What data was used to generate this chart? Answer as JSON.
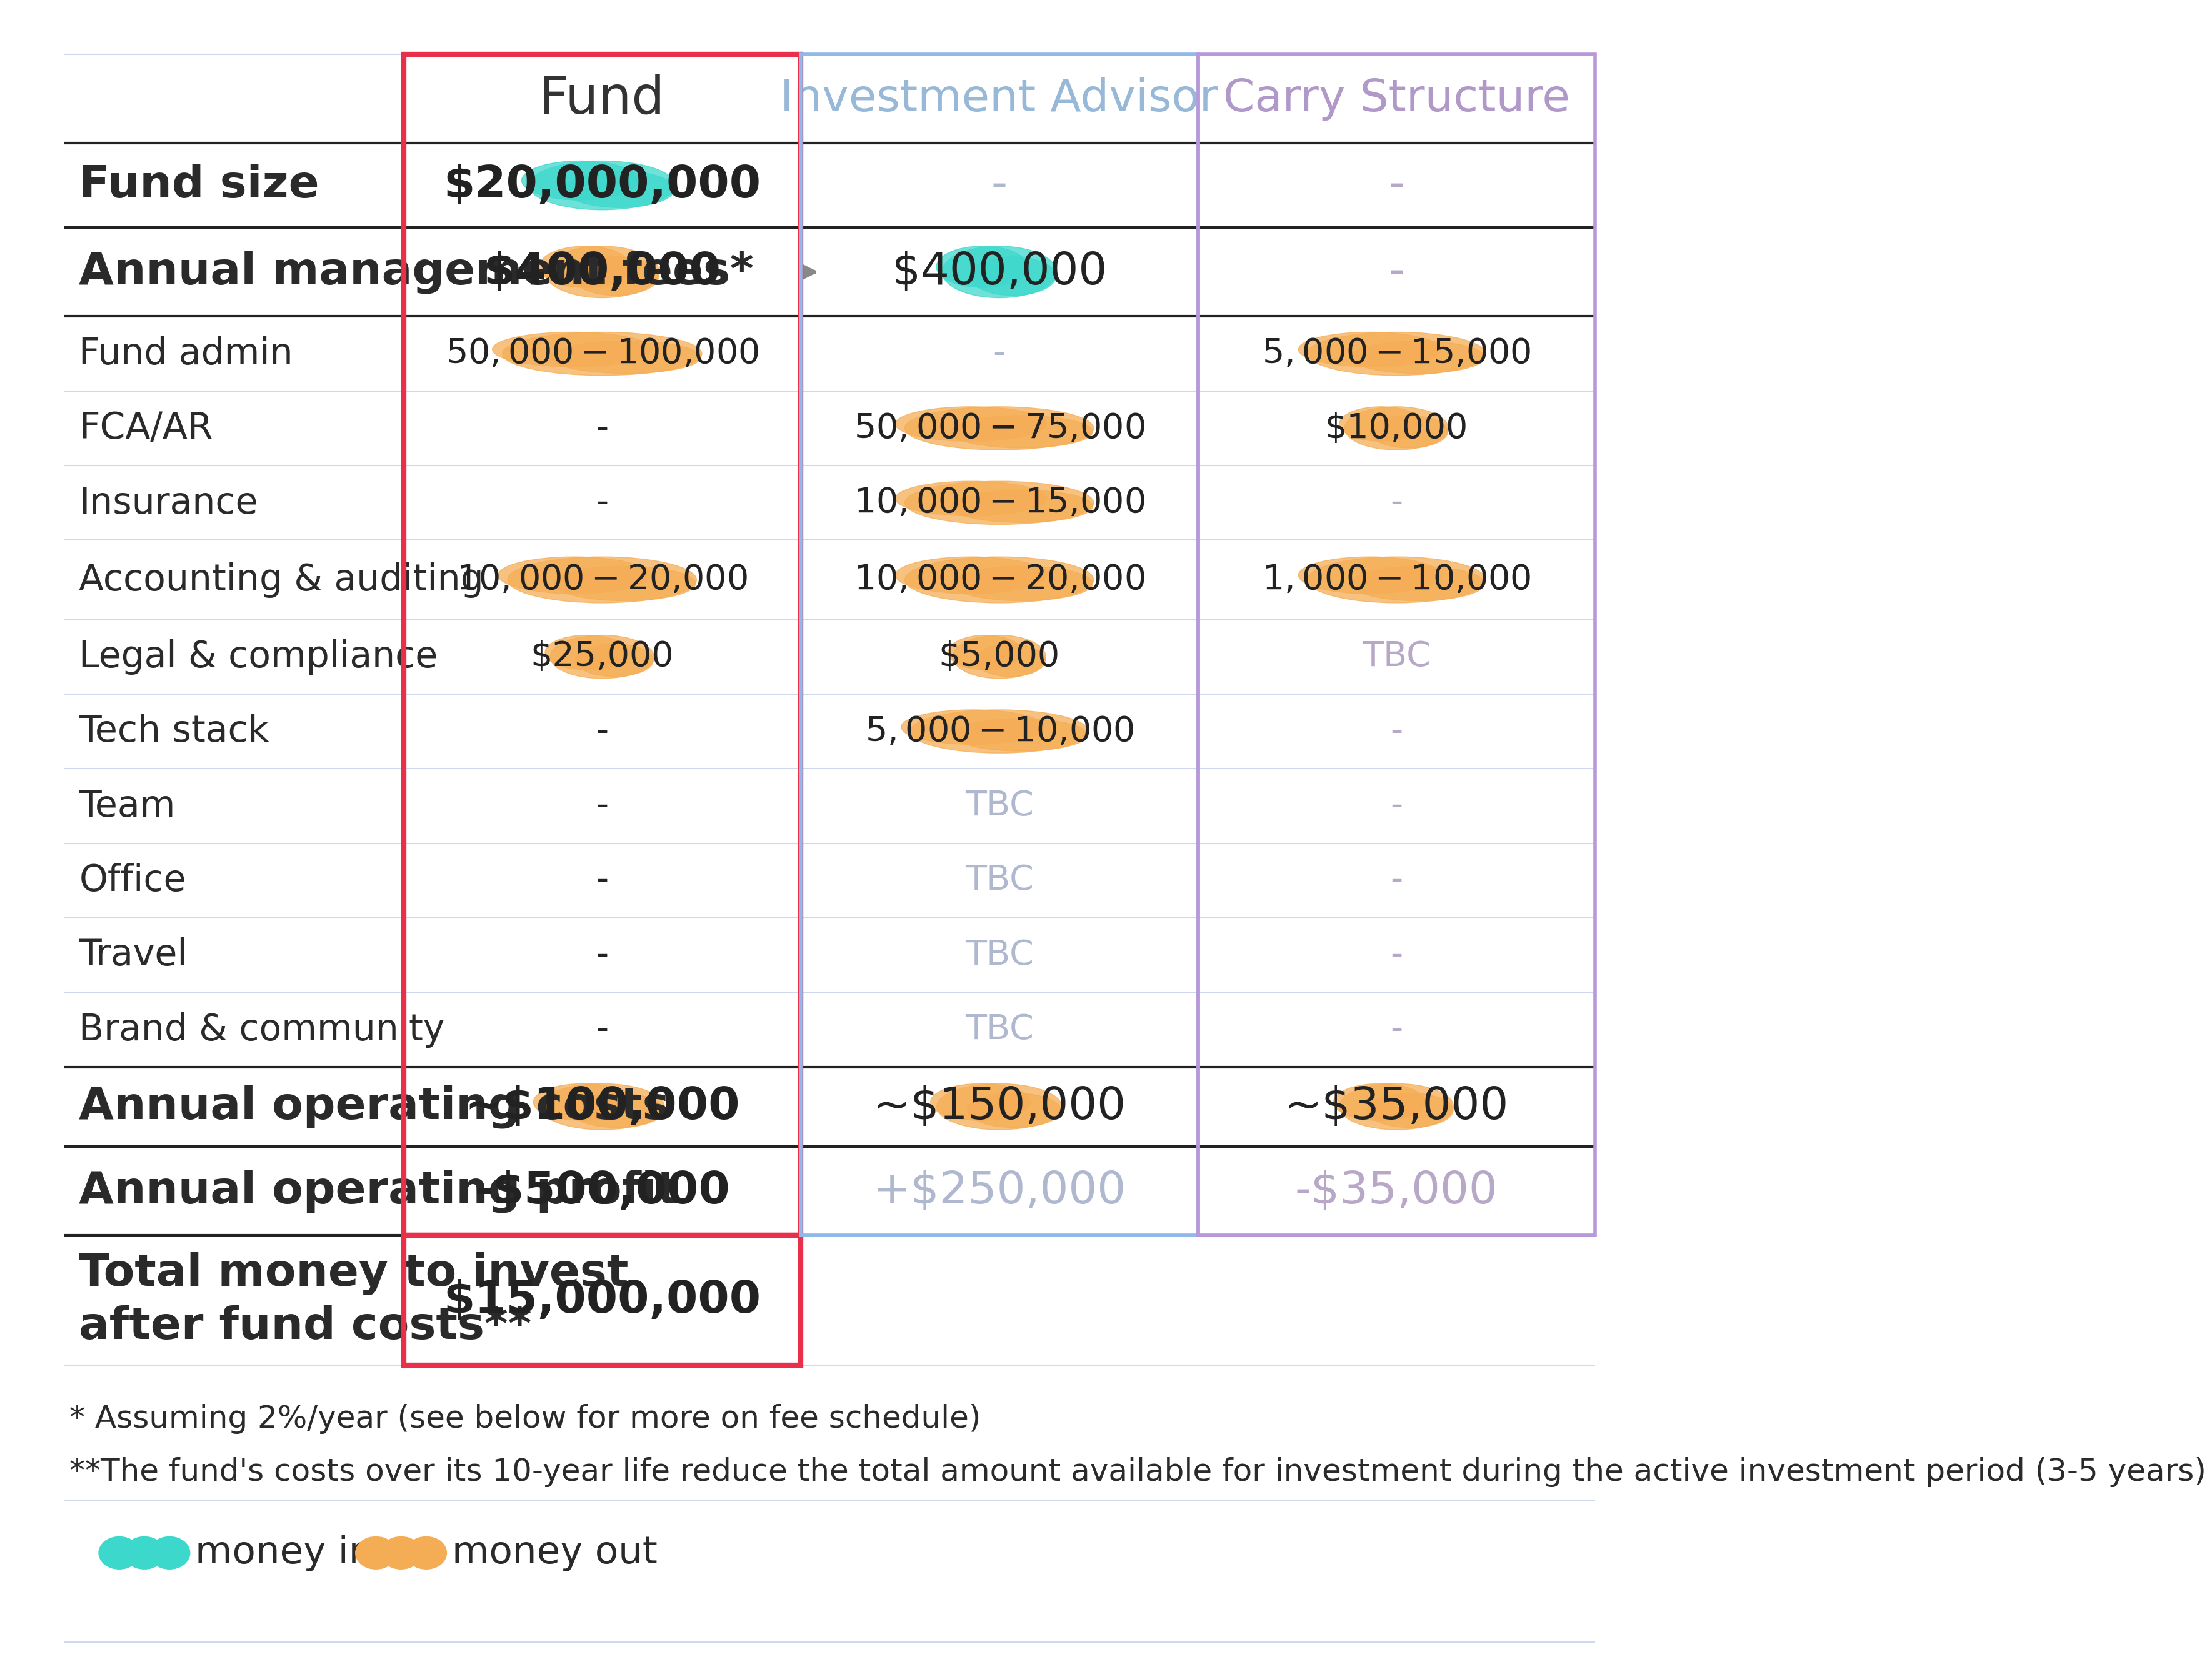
{
  "background_color": "#ffffff",
  "row_line_color_light": "#d0d8f0",
  "row_line_color_bold": "#222222",
  "red_border_color": "#e8304a",
  "blue_border_color": "#90b8e8",
  "purple_border_color": "#b898d8",
  "highlight_cyan": "#3dd8cc",
  "highlight_orange": "#f5ad55",
  "header_text_dark": "#333333",
  "header_text_blue": "#98b8d8",
  "header_text_purple": "#b098c8",
  "row_label_color": "#2a2a2a",
  "value_text_dark": "#222222",
  "value_text_faded_blue": "#b0b8d0",
  "value_text_faded_purple": "#b8a8c8",
  "arrow_color": "#888888",
  "footnote_color": "#2a2a2a",
  "legend_text_color": "#2a2a2a",
  "rows": [
    "Fund size",
    "Annual management fees*",
    "Fund admin",
    "FCA/AR",
    "Insurance",
    "Accounting & auditing",
    "Legal & compliance",
    "Tech stack",
    "Team",
    "Office",
    "Travel",
    "Brand & community",
    "Annual operating costs",
    "Annual operating profit",
    "Total money to invest\nafter fund costs**"
  ],
  "fund_col": [
    "$20,000,000",
    "$400,000",
    "$50,000-$100,000",
    "-",
    "-",
    "$10,000-$20,000",
    "$25,000",
    "-",
    "-",
    "-",
    "-",
    "-",
    "~$100,000",
    "-$500,000",
    "$15,000,000"
  ],
  "invest_col": [
    "-",
    "$400,000",
    "-",
    "$50,000-$75,000",
    "$10,000-$15,000",
    "$10,000-$20,000",
    "$5,000",
    "$5,000-$10,000",
    "TBC",
    "TBC",
    "TBC",
    "TBC",
    "~$150,000",
    "+$250,000",
    ""
  ],
  "carry_col": [
    "-",
    "-",
    "$5,000-$15,000",
    "$10,000",
    "-",
    "$1,000-$10,000",
    "TBC",
    "-",
    "-",
    "-",
    "-",
    "-",
    "~$35,000",
    "-$35,000",
    ""
  ],
  "fund_highlight": [
    "cyan",
    "orange",
    "orange",
    "none",
    "none",
    "orange",
    "orange",
    "none",
    "none",
    "none",
    "none",
    "none",
    "orange",
    "none",
    "none"
  ],
  "invest_highlight": [
    "none",
    "cyan",
    "none",
    "orange",
    "orange",
    "orange",
    "orange",
    "orange",
    "none",
    "none",
    "none",
    "none",
    "orange",
    "none",
    "none"
  ],
  "carry_highlight": [
    "none",
    "none",
    "orange",
    "orange",
    "none",
    "orange",
    "none",
    "none",
    "none",
    "none",
    "none",
    "none",
    "orange",
    "none",
    "none"
  ],
  "bold_rows": [
    0,
    1,
    12,
    13,
    14
  ],
  "footnote1": "* Assuming 2%/year (see below for more on fee schedule)",
  "footnote2": "**The fund's costs over its 10-year life reduce the total amount available for investment during the active investment period (3-5 years)"
}
